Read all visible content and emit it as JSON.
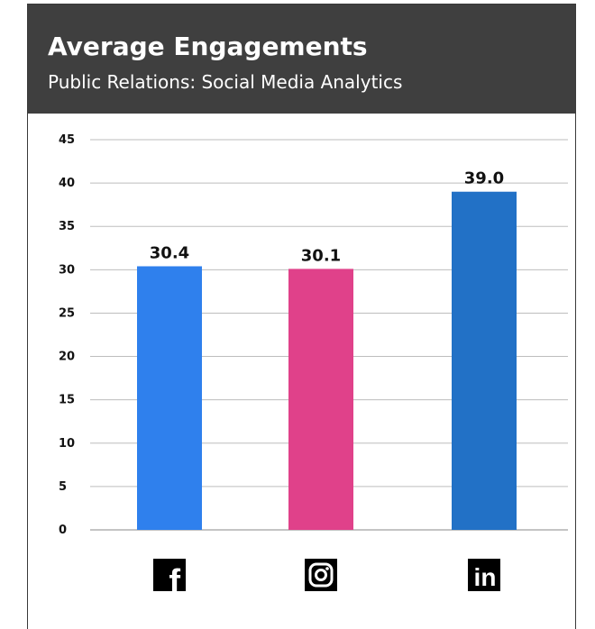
{
  "header": {
    "title": "Average Engagements",
    "subtitle": "Public Relations: Social Media Analytics"
  },
  "chart_data": {
    "type": "bar",
    "title": "Average Engagements",
    "subtitle": "Public Relations: Social Media Analytics",
    "categories": [
      "facebook-icon",
      "instagram-icon",
      "linkedin-icon"
    ],
    "values": [
      30.4,
      30.1,
      39.0
    ],
    "data_labels": [
      "30.4",
      "30.1",
      "39.0"
    ],
    "colors": [
      "#2f80ed",
      "#e0418a",
      "#2271c6"
    ],
    "ylim": [
      0,
      45
    ],
    "yticks": [
      0,
      5,
      10,
      15,
      20,
      25,
      30,
      35,
      40,
      45
    ],
    "grid": true,
    "xlabel": "",
    "ylabel": ""
  }
}
